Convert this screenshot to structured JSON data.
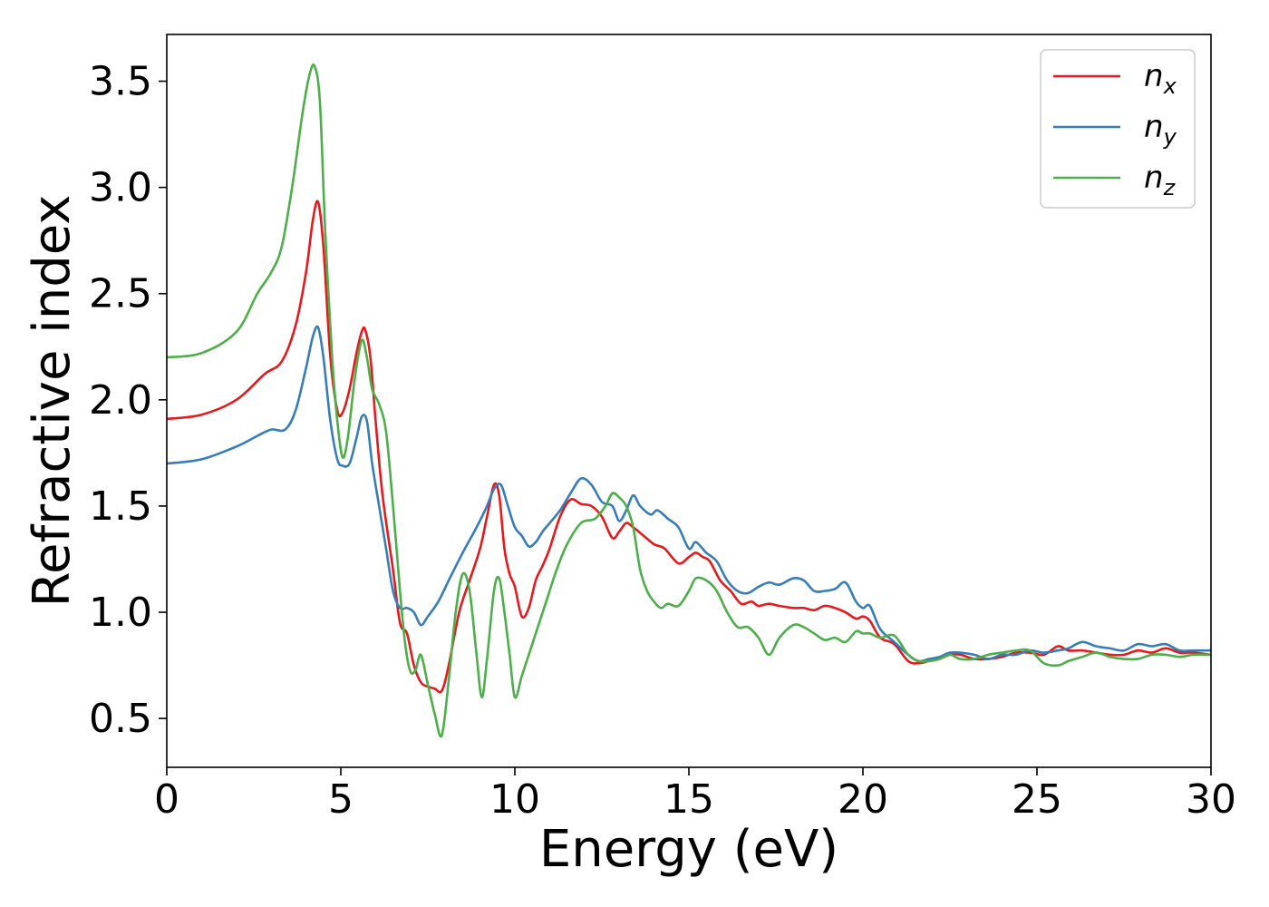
{
  "chart_data": {
    "type": "line",
    "xlabel": "Energy (eV)",
    "ylabel": "Refractive index",
    "xlim": [
      0,
      30
    ],
    "ylim": [
      0.27,
      3.72
    ],
    "xticks": [
      0,
      5,
      10,
      15,
      20,
      25,
      30
    ],
    "xtick_labels": [
      "0",
      "5",
      "10",
      "15",
      "20",
      "25",
      "30"
    ],
    "yticks": [
      0.5,
      1.0,
      1.5,
      2.0,
      2.5,
      3.0,
      3.5
    ],
    "ytick_labels": [
      "0.5",
      "1.0",
      "1.5",
      "2.0",
      "2.5",
      "3.0",
      "3.5"
    ],
    "grid": false,
    "legend_position": "top-right",
    "series": [
      {
        "name": "n_x",
        "label_main": "n",
        "label_sub": "x",
        "color": "#e41a1c",
        "x": [
          0,
          1,
          2,
          2.8,
          3.3,
          3.7,
          4.0,
          4.2,
          4.35,
          4.5,
          4.7,
          4.9,
          5.05,
          5.25,
          5.45,
          5.6,
          5.7,
          5.85,
          6.0,
          6.2,
          6.5,
          6.7,
          6.9,
          7.1,
          7.3,
          7.5,
          7.7,
          7.9,
          8.1,
          8.4,
          8.7,
          9.0,
          9.2,
          9.4,
          9.55,
          9.7,
          9.85,
          10.0,
          10.2,
          10.4,
          10.6,
          10.8,
          11.0,
          11.3,
          11.6,
          11.9,
          12.2,
          12.5,
          12.8,
          13.0,
          13.2,
          13.4,
          13.7,
          14.0,
          14.3,
          14.7,
          15.0,
          15.2,
          15.4,
          15.6,
          15.9,
          16.2,
          16.5,
          16.8,
          17.0,
          17.3,
          17.6,
          18.0,
          18.3,
          18.6,
          18.9,
          19.2,
          19.5,
          19.8,
          20.0,
          20.2,
          20.5,
          20.9,
          21.3,
          21.6,
          21.9,
          22.2,
          22.5,
          22.8,
          23.2,
          23.6,
          24.0,
          24.4,
          24.8,
          25.2,
          25.6,
          25.9,
          26.3,
          26.7,
          27.1,
          27.5,
          27.9,
          28.3,
          28.7,
          29.1,
          29.5,
          30.0
        ],
        "y": [
          1.91,
          1.93,
          2.0,
          2.12,
          2.18,
          2.35,
          2.6,
          2.85,
          2.93,
          2.72,
          2.2,
          1.95,
          1.94,
          2.05,
          2.22,
          2.32,
          2.33,
          2.2,
          1.9,
          1.55,
          1.2,
          0.95,
          0.9,
          0.75,
          0.67,
          0.65,
          0.64,
          0.63,
          0.75,
          1.0,
          1.15,
          1.3,
          1.45,
          1.6,
          1.55,
          1.3,
          1.18,
          1.12,
          0.98,
          1.02,
          1.15,
          1.22,
          1.3,
          1.45,
          1.53,
          1.51,
          1.5,
          1.45,
          1.35,
          1.38,
          1.42,
          1.4,
          1.36,
          1.32,
          1.3,
          1.23,
          1.26,
          1.28,
          1.26,
          1.24,
          1.15,
          1.1,
          1.04,
          1.05,
          1.03,
          1.04,
          1.03,
          1.02,
          1.02,
          1.01,
          1.03,
          1.02,
          1.0,
          0.97,
          0.98,
          0.96,
          0.88,
          0.85,
          0.77,
          0.76,
          0.77,
          0.78,
          0.8,
          0.8,
          0.78,
          0.78,
          0.79,
          0.81,
          0.81,
          0.8,
          0.84,
          0.82,
          0.82,
          0.81,
          0.8,
          0.8,
          0.82,
          0.81,
          0.83,
          0.81,
          0.81,
          0.8
        ]
      },
      {
        "name": "n_y",
        "label_main": "n",
        "label_sub": "y",
        "color": "#377eb8",
        "x": [
          0,
          1,
          2,
          2.6,
          3.0,
          3.4,
          3.7,
          4.0,
          4.2,
          4.35,
          4.5,
          4.7,
          4.9,
          5.05,
          5.25,
          5.45,
          5.6,
          5.75,
          5.9,
          6.1,
          6.3,
          6.5,
          6.7,
          6.9,
          7.1,
          7.3,
          7.5,
          7.8,
          8.1,
          8.5,
          8.9,
          9.2,
          9.4,
          9.6,
          9.8,
          10.0,
          10.2,
          10.4,
          10.6,
          10.8,
          11.0,
          11.3,
          11.6,
          11.9,
          12.2,
          12.5,
          12.8,
          13.0,
          13.2,
          13.4,
          13.6,
          13.9,
          14.1,
          14.4,
          14.7,
          15.0,
          15.2,
          15.5,
          15.8,
          16.1,
          16.4,
          16.7,
          17.0,
          17.3,
          17.6,
          18.0,
          18.3,
          18.6,
          18.9,
          19.2,
          19.5,
          19.8,
          20.0,
          20.2,
          20.5,
          20.9,
          21.3,
          21.6,
          21.9,
          22.2,
          22.5,
          22.8,
          23.2,
          23.6,
          24.0,
          24.4,
          24.8,
          25.2,
          25.6,
          25.9,
          26.3,
          26.7,
          27.1,
          27.5,
          27.9,
          28.3,
          28.7,
          29.1,
          29.5,
          30.0
        ],
        "y": [
          1.7,
          1.72,
          1.78,
          1.83,
          1.86,
          1.86,
          1.95,
          2.15,
          2.3,
          2.34,
          2.2,
          1.9,
          1.72,
          1.69,
          1.7,
          1.82,
          1.92,
          1.9,
          1.7,
          1.5,
          1.3,
          1.1,
          1.02,
          1.02,
          1.0,
          0.94,
          0.98,
          1.05,
          1.15,
          1.28,
          1.4,
          1.5,
          1.58,
          1.6,
          1.5,
          1.4,
          1.36,
          1.31,
          1.33,
          1.38,
          1.42,
          1.48,
          1.56,
          1.63,
          1.6,
          1.52,
          1.5,
          1.43,
          1.48,
          1.55,
          1.5,
          1.46,
          1.48,
          1.44,
          1.4,
          1.3,
          1.33,
          1.28,
          1.24,
          1.15,
          1.1,
          1.09,
          1.12,
          1.14,
          1.13,
          1.16,
          1.15,
          1.1,
          1.1,
          1.11,
          1.14,
          1.05,
          1.02,
          1.03,
          0.92,
          0.86,
          0.8,
          0.77,
          0.78,
          0.79,
          0.81,
          0.81,
          0.8,
          0.78,
          0.8,
          0.8,
          0.82,
          0.81,
          0.82,
          0.83,
          0.86,
          0.84,
          0.83,
          0.82,
          0.85,
          0.84,
          0.85,
          0.82,
          0.82,
          0.82
        ]
      },
      {
        "name": "n_z",
        "label_main": "n",
        "label_sub": "z",
        "color": "#4daf4a",
        "x": [
          0,
          1,
          2,
          2.6,
          3.0,
          3.3,
          3.6,
          3.9,
          4.1,
          4.25,
          4.4,
          4.55,
          4.75,
          4.9,
          5.05,
          5.2,
          5.4,
          5.6,
          5.75,
          5.9,
          6.1,
          6.3,
          6.5,
          6.7,
          6.85,
          7.0,
          7.15,
          7.3,
          7.5,
          7.7,
          7.9,
          8.1,
          8.3,
          8.5,
          8.7,
          8.9,
          9.05,
          9.2,
          9.4,
          9.55,
          9.7,
          9.85,
          10.0,
          10.2,
          10.4,
          10.6,
          10.9,
          11.2,
          11.5,
          11.9,
          12.3,
          12.6,
          12.8,
          13.0,
          13.2,
          13.4,
          13.6,
          13.8,
          14.0,
          14.2,
          14.4,
          14.7,
          15.0,
          15.2,
          15.5,
          15.8,
          16.1,
          16.4,
          16.7,
          17.0,
          17.3,
          17.6,
          18.0,
          18.3,
          18.6,
          18.9,
          19.2,
          19.5,
          19.8,
          20.0,
          20.2,
          20.5,
          20.9,
          21.3,
          21.6,
          21.9,
          22.2,
          22.5,
          22.8,
          23.2,
          23.6,
          24.0,
          24.4,
          24.8,
          25.2,
          25.6,
          25.9,
          26.3,
          26.7,
          27.1,
          27.5,
          27.9,
          28.3,
          28.7,
          29.1,
          29.5,
          30.0
        ],
        "y": [
          2.2,
          2.22,
          2.32,
          2.5,
          2.6,
          2.72,
          3.0,
          3.35,
          3.53,
          3.57,
          3.4,
          2.8,
          2.2,
          1.9,
          1.73,
          1.82,
          2.1,
          2.28,
          2.2,
          2.05,
          1.98,
          1.85,
          1.5,
          1.1,
          0.85,
          0.72,
          0.73,
          0.8,
          0.66,
          0.52,
          0.42,
          0.68,
          1.0,
          1.18,
          1.1,
          0.8,
          0.6,
          0.78,
          1.1,
          1.16,
          1.0,
          0.8,
          0.6,
          0.7,
          0.8,
          0.9,
          1.05,
          1.2,
          1.32,
          1.42,
          1.44,
          1.5,
          1.56,
          1.54,
          1.5,
          1.4,
          1.2,
          1.1,
          1.05,
          1.02,
          1.04,
          1.03,
          1.1,
          1.16,
          1.15,
          1.1,
          1.0,
          0.93,
          0.93,
          0.88,
          0.8,
          0.88,
          0.94,
          0.93,
          0.9,
          0.87,
          0.88,
          0.86,
          0.91,
          0.9,
          0.9,
          0.88,
          0.89,
          0.8,
          0.77,
          0.77,
          0.78,
          0.8,
          0.78,
          0.78,
          0.8,
          0.81,
          0.82,
          0.82,
          0.76,
          0.75,
          0.77,
          0.79,
          0.81,
          0.79,
          0.78,
          0.78,
          0.8,
          0.8,
          0.79,
          0.8,
          0.8
        ]
      }
    ]
  }
}
